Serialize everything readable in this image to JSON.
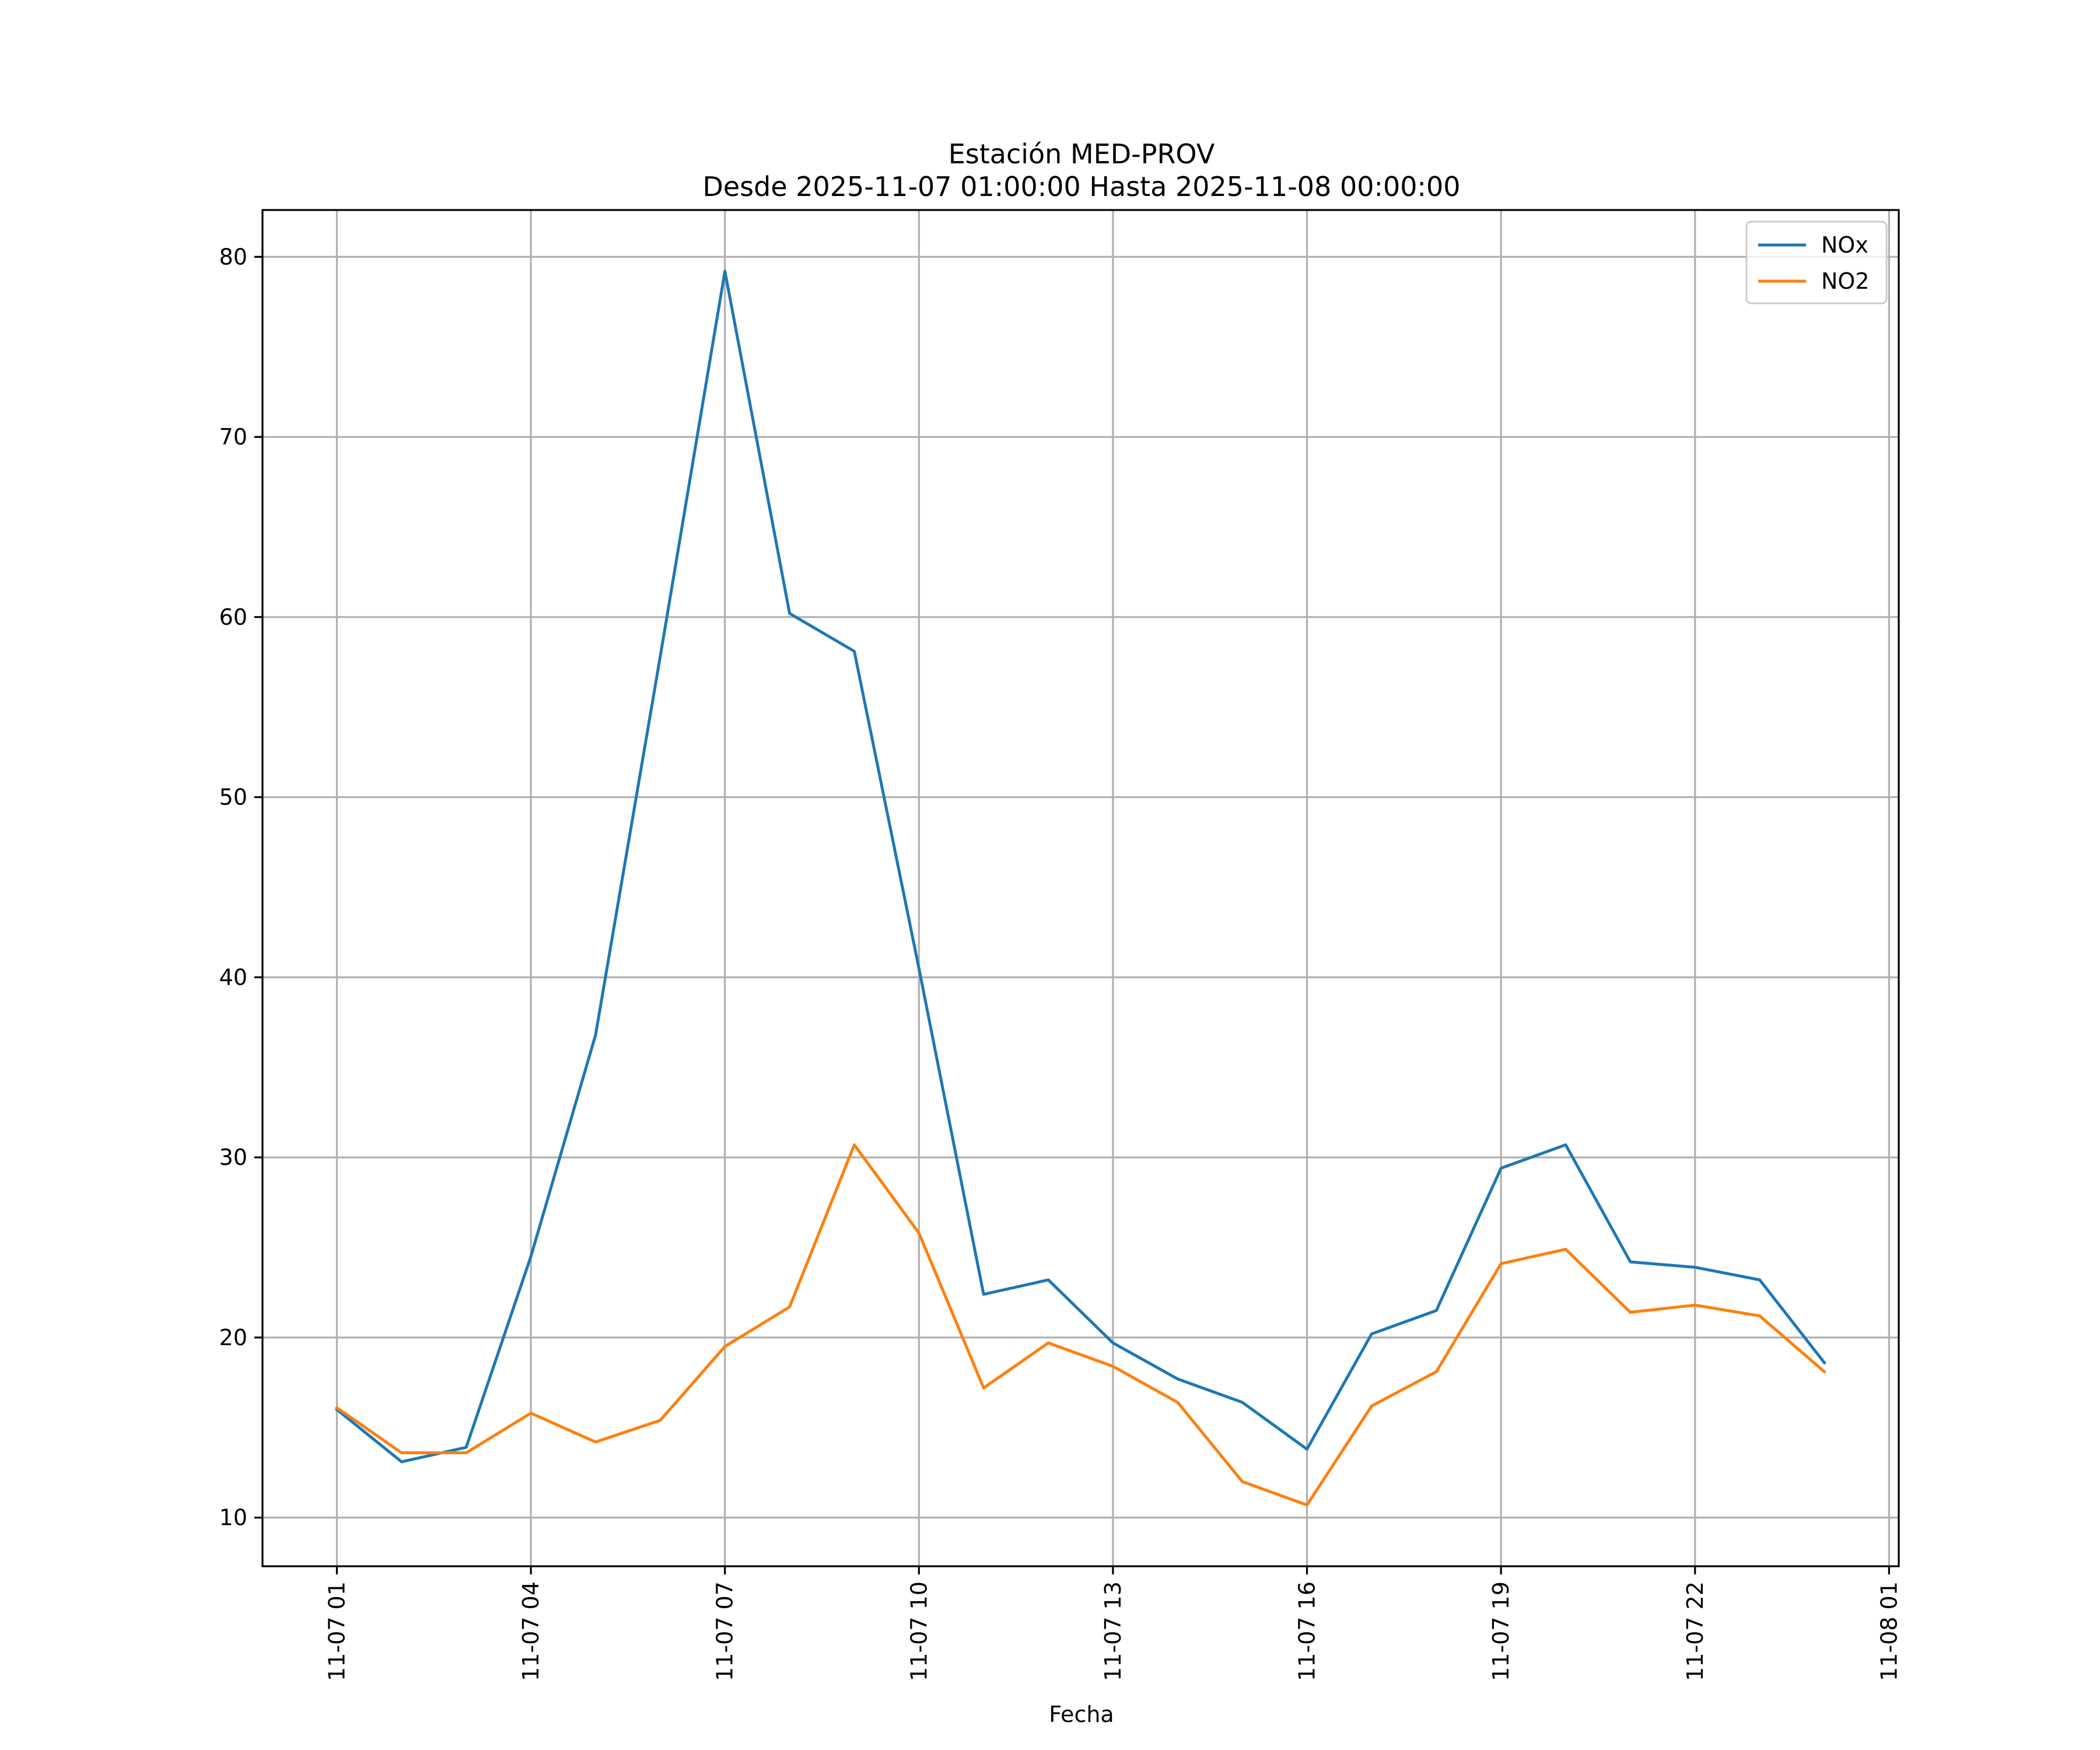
{
  "chart_data": {
    "type": "line",
    "title": "Estación MED-PROV",
    "subtitle": "Desde 2025-11-07 01:00:00 Hasta 2025-11-08 00:00:00",
    "xlabel": "Fecha",
    "ylabel": "",
    "x": [
      "2025-11-07 01:00",
      "2025-11-07 02:00",
      "2025-11-07 03:00",
      "2025-11-07 04:00",
      "2025-11-07 05:00",
      "2025-11-07 06:00",
      "2025-11-07 07:00",
      "2025-11-07 08:00",
      "2025-11-07 09:00",
      "2025-11-07 10:00",
      "2025-11-07 11:00",
      "2025-11-07 12:00",
      "2025-11-07 13:00",
      "2025-11-07 14:00",
      "2025-11-07 15:00",
      "2025-11-07 16:00",
      "2025-11-07 17:00",
      "2025-11-07 18:00",
      "2025-11-07 19:00",
      "2025-11-07 20:00",
      "2025-11-07 21:00",
      "2025-11-07 22:00",
      "2025-11-07 23:00",
      "2025-11-08 00:00"
    ],
    "xlim": [
      "2025-11-06 23:51",
      "2025-11-08 01:09"
    ],
    "ylim": [
      7.3,
      82.6
    ],
    "series": [
      {
        "name": "NOx",
        "color": "#1f77b4",
        "values": [
          16.0,
          13.1,
          13.9,
          24.5,
          36.8,
          57.8,
          79.2,
          60.2,
          58.1,
          40.5,
          22.4,
          23.2,
          19.7,
          17.7,
          16.4,
          13.8,
          20.2,
          21.5,
          29.4,
          30.7,
          24.2,
          23.9,
          23.2,
          18.6
        ]
      },
      {
        "name": "NO2",
        "color": "#ff7f0e",
        "values": [
          16.1,
          13.6,
          13.6,
          15.8,
          14.2,
          15.4,
          19.5,
          21.7,
          30.7,
          25.8,
          17.2,
          19.7,
          18.4,
          16.4,
          12.0,
          10.7,
          16.2,
          18.1,
          24.1,
          24.9,
          21.4,
          21.8,
          21.2,
          18.1
        ]
      }
    ],
    "x_ticks": [
      {
        "value": "2025-11-07 01:00",
        "label": "11-07 01"
      },
      {
        "value": "2025-11-07 04:00",
        "label": "11-07 04"
      },
      {
        "value": "2025-11-07 07:00",
        "label": "11-07 07"
      },
      {
        "value": "2025-11-07 10:00",
        "label": "11-07 10"
      },
      {
        "value": "2025-11-07 13:00",
        "label": "11-07 13"
      },
      {
        "value": "2025-11-07 16:00",
        "label": "11-07 16"
      },
      {
        "value": "2025-11-07 19:00",
        "label": "11-07 19"
      },
      {
        "value": "2025-11-07 22:00",
        "label": "11-07 22"
      },
      {
        "value": "2025-11-08 01:00",
        "label": "11-08 01"
      }
    ],
    "y_ticks": [
      10,
      20,
      30,
      40,
      50,
      60,
      70,
      80
    ],
    "grid": true,
    "legend_position": "top-right"
  }
}
